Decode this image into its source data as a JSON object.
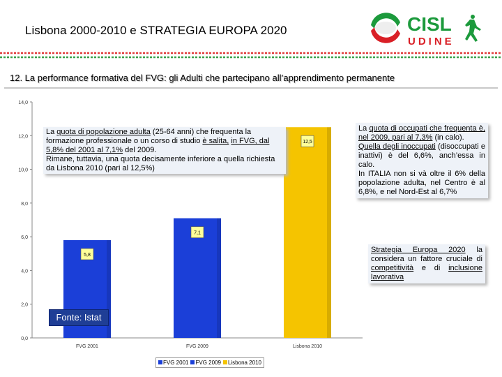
{
  "header": {
    "title": "Lisbona 2000-2010 e STRATEGIA EUROPA 2020",
    "logo_text_top": "CISL",
    "logo_text_bottom": "UDINE"
  },
  "section_title": "12. La performance formativa del FVG: gli Adulti che partecipano all’apprendimento permanente",
  "chart_data": {
    "type": "bar",
    "categories": [
      "FVG 2001",
      "FVG 2009",
      "Lisbona 2010"
    ],
    "values": [
      5.8,
      7.1,
      12.5
    ],
    "data_labels": [
      "5,8",
      "7,1",
      "12,5"
    ],
    "colors": [
      "#1b3fd8",
      "#1b3fd8",
      "#f5c400"
    ],
    "ylim": [
      0,
      14
    ],
    "yticks": [
      0,
      2,
      4,
      6,
      8,
      10,
      12,
      14
    ],
    "ytick_labels": [
      "0,0",
      "2,0",
      "4,0",
      "6,0",
      "8,0",
      "10,0",
      "12,0",
      "14,0"
    ],
    "title": "",
    "xlabel": "",
    "ylabel": "",
    "legend": [
      "FVG 2001",
      "FVG 2009",
      "Lisbona 2010"
    ],
    "legend_position": "bottom"
  },
  "note1": {
    "t1": "La ",
    "t2": "quota di popolazione adulta",
    "t3": " (25-64 anni) che frequenta la formazione professionale o un corso di studio ",
    "t4": "è salita,",
    "t5": "in FVG, dal 5,8% del 2001 al 7,1%",
    "t6": " del 2009.",
    "t7": "Rimane, tuttavia, una quota decisamente inferiore a quella richiesta da Lisbona 2010 (pari al 12,5%)"
  },
  "note2": {
    "t1": "La ",
    "t2": "quota di occupati che frequenta è, nel 2009, pari al 7,3%",
    "t3": " (in calo).",
    "t4": "Quella degli inoccupati",
    "t5": " (disoccupati e inattivi) è del 6,6%, anch’essa in calo.",
    "t6": "In ITALIA non si và oltre il 6% della popolazione adulta, nel Centro è al 6,8%, e nel Nord-Est al 6,7%"
  },
  "note3": {
    "t1": "Strategia Europa 2020",
    "t2": " la considera un fattore cruciale di ",
    "t3": "competitività",
    "t4": " e di ",
    "t5": "inclusione lavorativa"
  },
  "source_label": "Fonte: Istat"
}
